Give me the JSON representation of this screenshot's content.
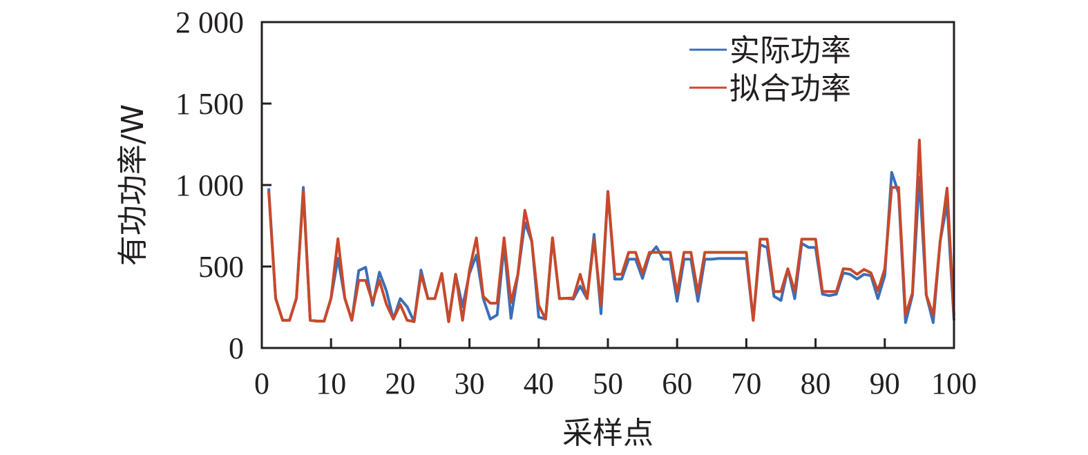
{
  "chart_data": {
    "type": "line",
    "title": "",
    "xlabel": "采样点",
    "ylabel": "有功功率/W",
    "xlim": [
      0,
      100
    ],
    "ylim": [
      0,
      2000
    ],
    "x_ticks": [
      0,
      10,
      20,
      30,
      40,
      50,
      60,
      70,
      80,
      90,
      100
    ],
    "x_tick_labels": [
      "0",
      "10",
      "20",
      "30",
      "40",
      "50",
      "60",
      "70",
      "80",
      "90",
      "100"
    ],
    "y_ticks": [
      0,
      500,
      1000,
      1500,
      2000
    ],
    "y_tick_labels": [
      "0",
      "500",
      "1 000",
      "1 500",
      "2 000"
    ],
    "grid": false,
    "legend_position": "upper right",
    "x": [
      1,
      2,
      3,
      4,
      5,
      6,
      7,
      8,
      9,
      10,
      11,
      12,
      13,
      14,
      15,
      16,
      17,
      18,
      19,
      20,
      21,
      22,
      23,
      24,
      25,
      26,
      27,
      28,
      29,
      30,
      31,
      32,
      33,
      34,
      35,
      36,
      37,
      38,
      39,
      40,
      41,
      42,
      43,
      44,
      45,
      46,
      47,
      48,
      49,
      50,
      51,
      52,
      53,
      54,
      55,
      56,
      57,
      58,
      59,
      60,
      61,
      62,
      63,
      64,
      65,
      66,
      67,
      68,
      69,
      70,
      71,
      72,
      73,
      74,
      75,
      76,
      77,
      78,
      79,
      80,
      81,
      82,
      83,
      84,
      85,
      86,
      87,
      88,
      89,
      90,
      91,
      92,
      93,
      94,
      95,
      96,
      97,
      98,
      99,
      100
    ],
    "series": [
      {
        "name": "实际功率",
        "color": "#3a6fb8",
        "values": [
          980,
          305,
          170,
          170,
          305,
          985,
          170,
          165,
          165,
          305,
          550,
          305,
          170,
          475,
          495,
          262,
          465,
          350,
          177,
          303,
          253,
          162,
          478,
          303,
          303,
          457,
          162,
          452,
          253,
          457,
          570,
          303,
          177,
          203,
          630,
          182,
          452,
          769,
          655,
          190,
          177,
          676,
          303,
          305,
          300,
          380,
          303,
          697,
          211,
          960,
          423,
          423,
          545,
          545,
          427,
          570,
          621,
          545,
          545,
          287,
          545,
          545,
          287,
          545,
          545,
          549,
          549,
          549,
          549,
          549,
          170,
          634,
          617,
          317,
          292,
          486,
          303,
          642,
          617,
          617,
          330,
          321,
          330,
          461,
          452,
          423,
          452,
          444,
          303,
          444,
          1078,
          951,
          156,
          325,
          1048,
          325,
          156,
          655,
          888,
          169
        ]
      },
      {
        "name": "拟合功率",
        "color": "#c8492a",
        "values": [
          960,
          305,
          170,
          170,
          305,
          960,
          170,
          165,
          165,
          305,
          670,
          305,
          170,
          415,
          415,
          283,
          415,
          268,
          177,
          267,
          170,
          162,
          452,
          303,
          303,
          457,
          162,
          452,
          170,
          478,
          676,
          317,
          275,
          275,
          676,
          279,
          452,
          845,
          655,
          262,
          177,
          676,
          303,
          305,
          307,
          452,
          303,
          668,
          267,
          960,
          452,
          452,
          587,
          587,
          457,
          587,
          587,
          587,
          587,
          338,
          587,
          587,
          338,
          587,
          587,
          587,
          587,
          587,
          587,
          587,
          170,
          668,
          668,
          346,
          346,
          486,
          346,
          668,
          668,
          668,
          346,
          346,
          346,
          486,
          483,
          452,
          482,
          461,
          351,
          486,
          985,
          985,
          203,
          338,
          1276,
          325,
          203,
          655,
          981,
          199
        ]
      }
    ]
  },
  "legend": {
    "items": [
      {
        "label": "实际功率",
        "color": "#3a6fb8"
      },
      {
        "label": "拟合功率",
        "color": "#c8492a"
      }
    ]
  }
}
